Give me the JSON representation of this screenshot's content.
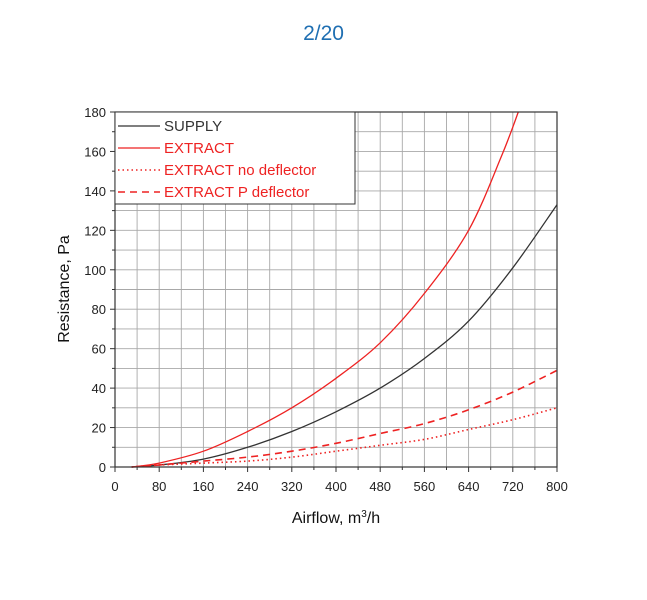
{
  "page_label": "2/20",
  "chart_data": {
    "type": "line",
    "xlabel": "Airflow, m",
    "xlabel_sup": "3",
    "xlabel_suffix": "/h",
    "ylabel": "Resistance, Pa",
    "xlim": [
      0,
      800
    ],
    "ylim": [
      0,
      180
    ],
    "x_ticks": [
      0,
      80,
      160,
      240,
      320,
      400,
      480,
      560,
      640,
      720,
      800
    ],
    "y_ticks": [
      0,
      20,
      40,
      60,
      80,
      100,
      120,
      140,
      160,
      180
    ],
    "grid": true,
    "legend_position": "top-left",
    "series": [
      {
        "name": "SUPPLY",
        "color": "#333333",
        "style": "solid",
        "x": [
          30,
          80,
          160,
          240,
          320,
          400,
          480,
          560,
          640,
          720,
          800
        ],
        "y": [
          0,
          1,
          4,
          10,
          18,
          28,
          40,
          55,
          74,
          101,
          133
        ]
      },
      {
        "name": "EXTRACT",
        "color": "#ee2222",
        "style": "solid",
        "x": [
          30,
          80,
          160,
          240,
          320,
          400,
          480,
          560,
          640,
          700,
          730
        ],
        "y": [
          0,
          2,
          8,
          18,
          30,
          45,
          63,
          88,
          120,
          158,
          180
        ]
      },
      {
        "name": "EXTRACT no deflector",
        "color": "#ee2222",
        "style": "dotted",
        "x": [
          30,
          80,
          160,
          240,
          320,
          400,
          480,
          560,
          640,
          720,
          800
        ],
        "y": [
          0,
          1,
          2,
          3,
          5,
          8,
          11,
          14,
          19,
          24,
          30
        ]
      },
      {
        "name": "EXTRACT P deflector",
        "color": "#ee2222",
        "style": "dashed",
        "x": [
          30,
          80,
          160,
          240,
          320,
          400,
          480,
          560,
          640,
          720,
          800
        ],
        "y": [
          0,
          1,
          3,
          5,
          8,
          12,
          17,
          22,
          29,
          38,
          49
        ]
      }
    ]
  }
}
